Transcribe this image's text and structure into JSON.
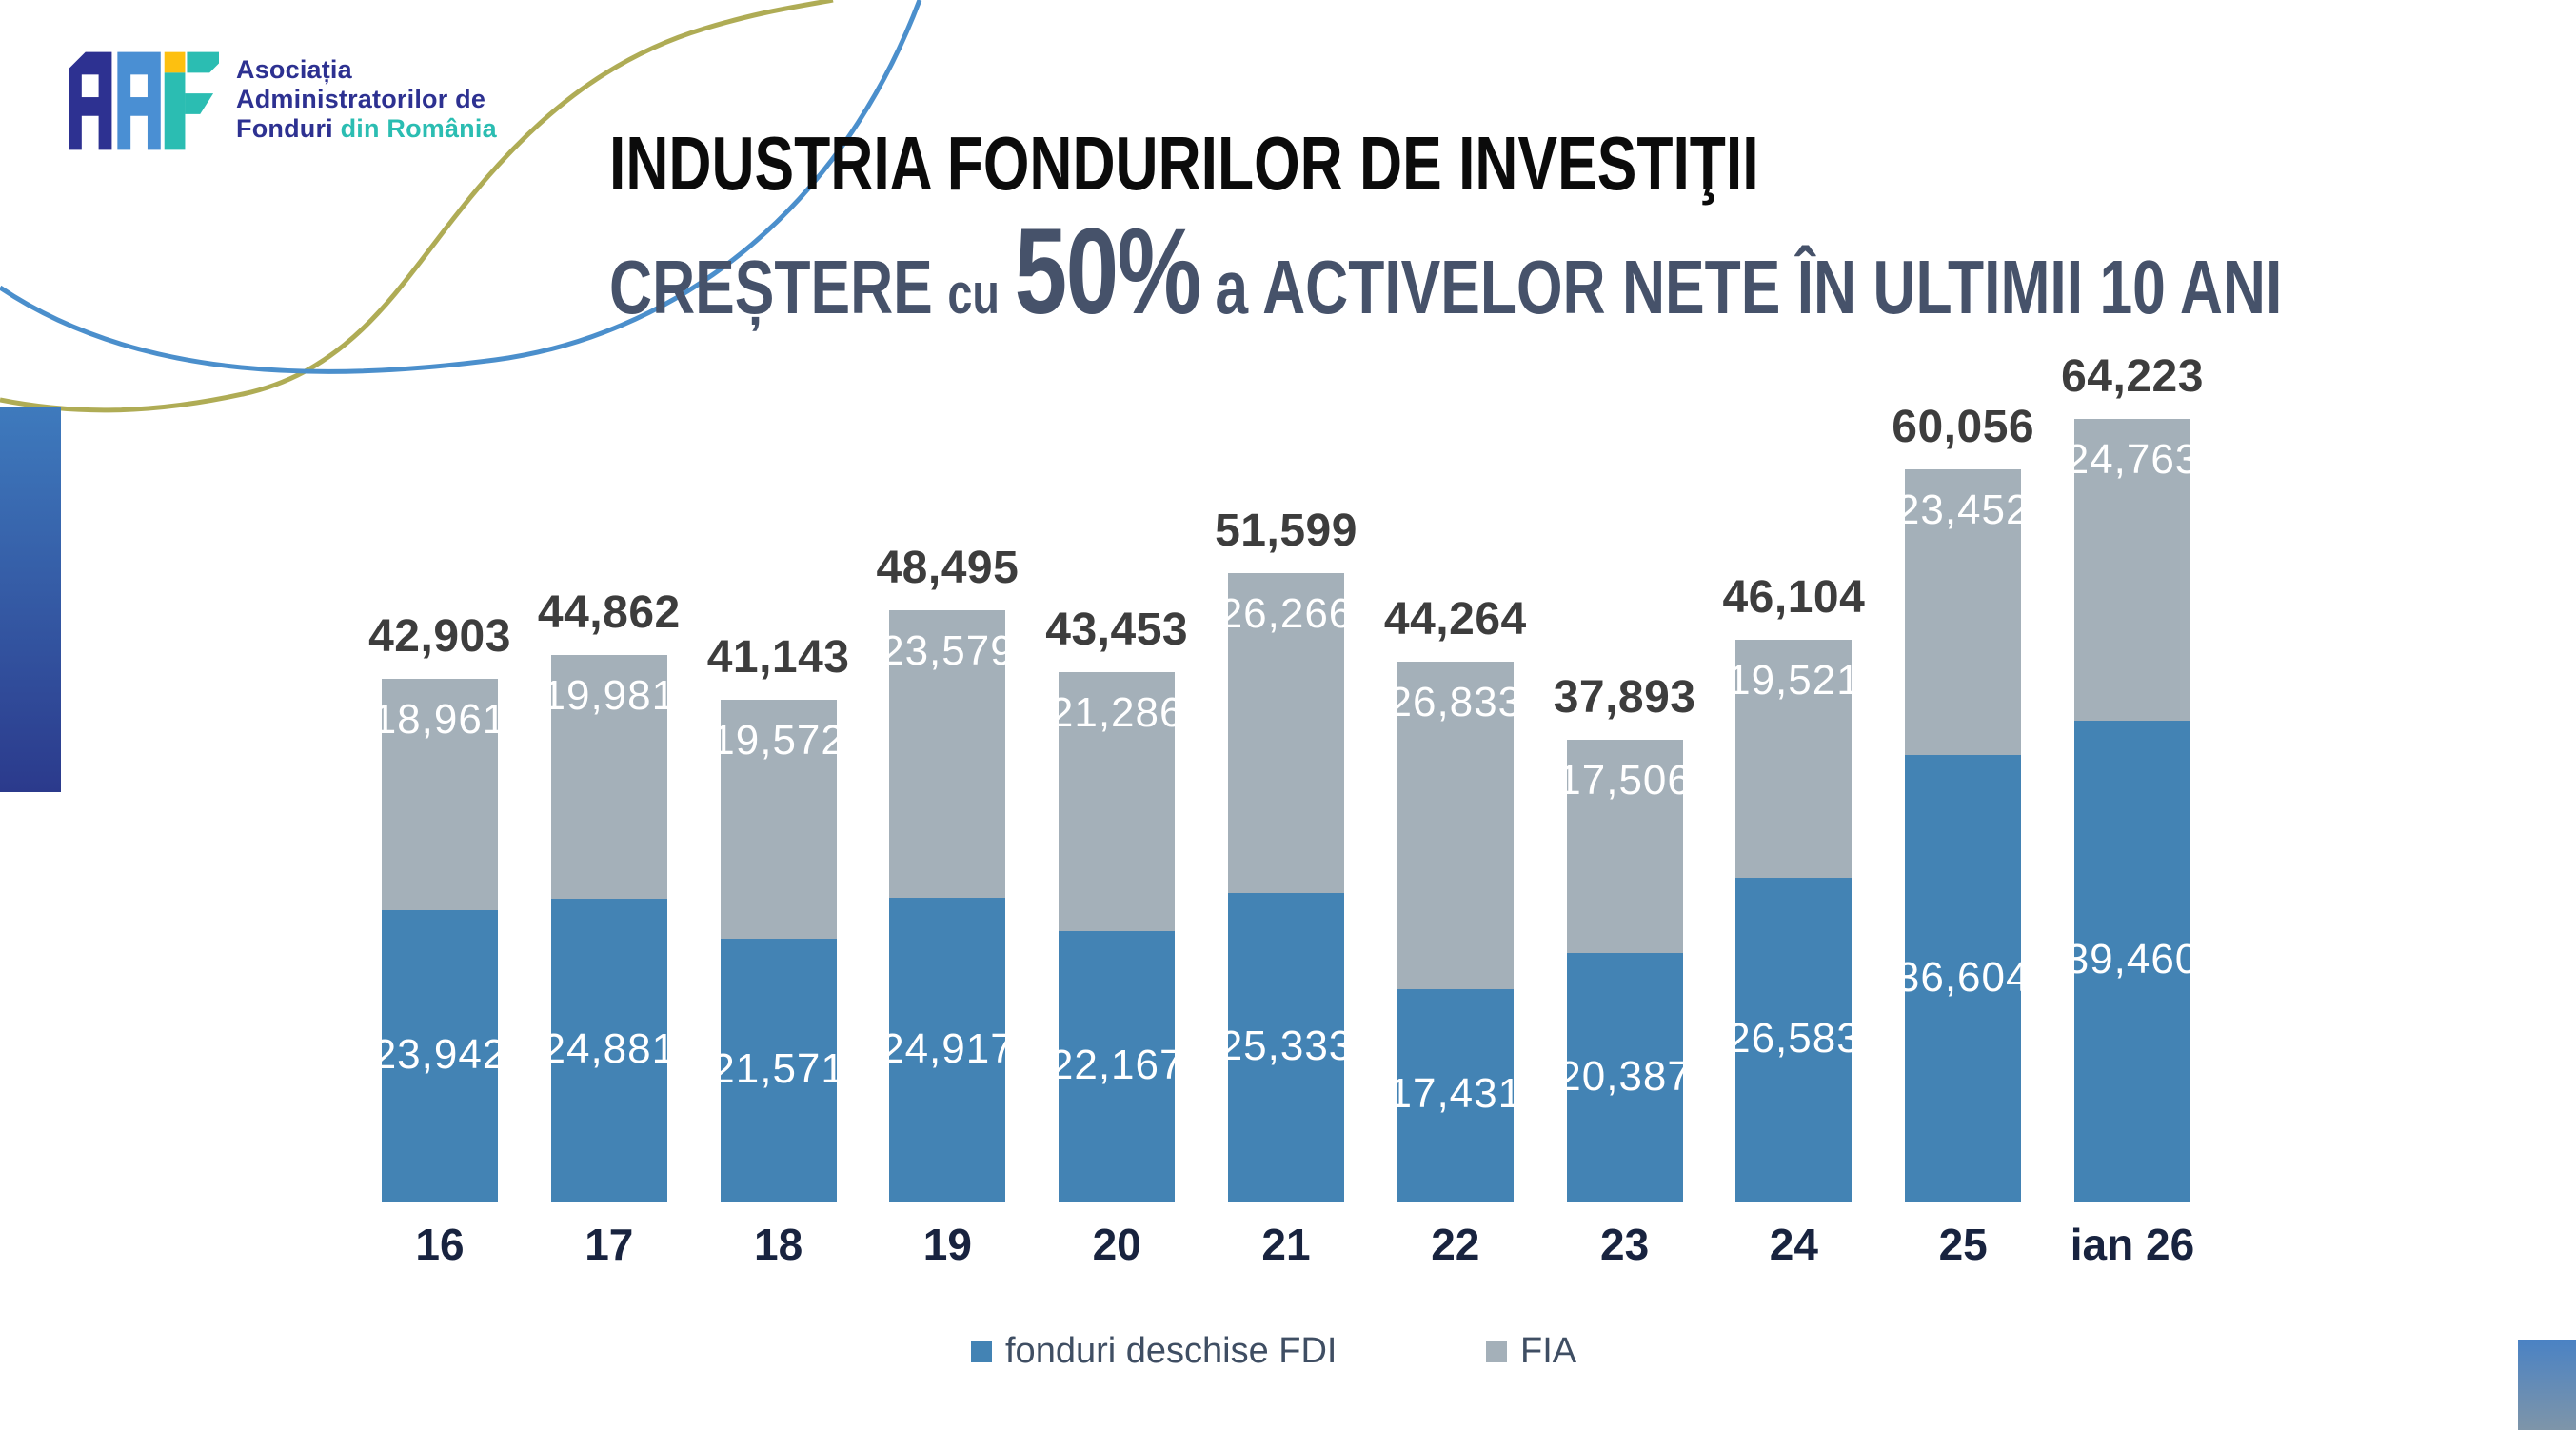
{
  "logo": {
    "mark": "AAF-logo-mark",
    "org_line1": "Asociația",
    "org_line2": "Administratorilor de",
    "org_line3_navy": "Fonduri",
    "org_line3_teal": "din România"
  },
  "title": {
    "line1": "INDUSTRIA FONDURILOR DE INVESTIŢII",
    "line2_lead": "CREȘTERE",
    "line2_cu": "cu",
    "line2_pct": "50%",
    "line2_rest": "a ACTIVELOR NETE ÎN ULTIMII 10 ANI"
  },
  "chart_data": {
    "type": "bar",
    "subtype": "stacked-vertical",
    "categories": [
      "16",
      "17",
      "18",
      "19",
      "20",
      "21",
      "22",
      "23",
      "24",
      "25",
      "ian 26"
    ],
    "series": [
      {
        "name": "fonduri deschise FDI",
        "color": "#4383B4",
        "values": [
          23942,
          24881,
          21571,
          24917,
          22167,
          25333,
          17431,
          20387,
          26583,
          36604,
          39460
        ]
      },
      {
        "name": "FIA",
        "color": "#A4B0B9",
        "values": [
          18961,
          19981,
          19572,
          23579,
          21286,
          26266,
          26833,
          17506,
          19521,
          23452,
          24763
        ]
      }
    ],
    "totals": [
      42903,
      44862,
      41143,
      48495,
      43453,
      51599,
      44264,
      37893,
      46104,
      60056,
      64223
    ],
    "ylim": [
      0,
      64223
    ],
    "grid": false,
    "legend_position": "bottom",
    "value_label_color_inside": "#ffffff",
    "total_label_color": "#3D3D3D"
  },
  "colors": {
    "fdi_blue": "#4383B4",
    "fia_gray": "#A4B0B9",
    "title_black": "#0b0b0b",
    "title_slate": "#46526A",
    "axis_navy": "#18233F",
    "logo_navy": "#2D3191",
    "logo_blue": "#4A8FD3",
    "logo_teal": "#2BBDB2",
    "logo_yellow": "#FDC010",
    "curve_olive": "#AFAC55",
    "curve_blue": "#4B8FCC"
  }
}
